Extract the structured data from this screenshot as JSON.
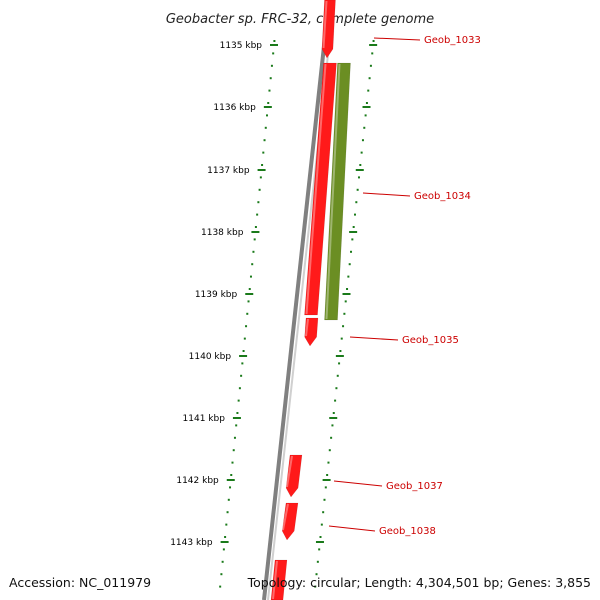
{
  "title": "Geobacter sp. FRC-32, complete genome",
  "footer": {
    "accession": "Accession: NC_011979",
    "topology": "Topology: circular; Length: 4,304,501 bp; Genes: 3,855"
  },
  "ruler": {
    "ticks": [
      "1135 kbp",
      "1136 kbp",
      "1137 kbp",
      "1138 kbp",
      "1139 kbp",
      "1140 kbp",
      "1141 kbp",
      "1142 kbp",
      "1143 kbp"
    ]
  },
  "genes": [
    {
      "label": "Geob_1033",
      "strand": "forward",
      "color": "#ff1a1a"
    },
    {
      "label": "Geob_1034",
      "strand": "reverse",
      "color": "#6b8e23"
    },
    {
      "label": "",
      "strand": "forward",
      "color": "#ff1a1a"
    },
    {
      "label": "Geob_1035",
      "strand": "forward",
      "color": "#ff1a1a"
    },
    {
      "label": "Geob_1037",
      "strand": "forward",
      "color": "#ff1a1a"
    },
    {
      "label": "Geob_1038",
      "strand": "forward",
      "color": "#ff1a1a"
    },
    {
      "label": "",
      "strand": "forward",
      "color": "#ff1a1a"
    }
  ],
  "colors": {
    "backbone": "#808080",
    "ruler": "#1a7a1a",
    "label_line": "#cc0000"
  }
}
